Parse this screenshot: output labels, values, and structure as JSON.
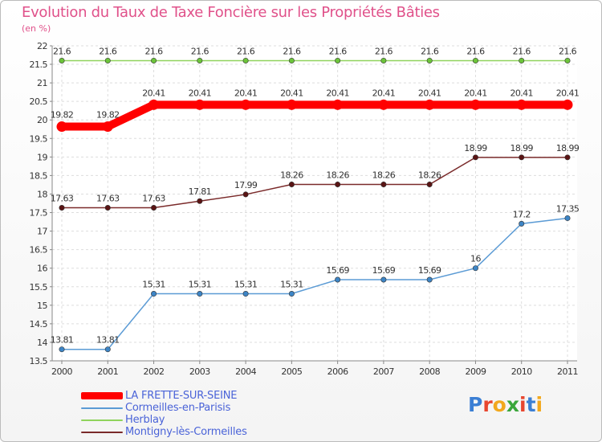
{
  "chart_data": {
    "type": "line",
    "title": "Evolution du Taux de Taxe Foncière sur les Propriétés Bâties",
    "unit_label": "(en %)",
    "x": [
      "2000",
      "2001",
      "2002",
      "2003",
      "2004",
      "2005",
      "2006",
      "2007",
      "2008",
      "2009",
      "2010",
      "2011"
    ],
    "ylim": [
      13.5,
      22
    ],
    "yticks": [
      "13.5",
      "14",
      "14.5",
      "15",
      "15.5",
      "16",
      "16.5",
      "17",
      "17.5",
      "18",
      "18.5",
      "19",
      "19.5",
      "20",
      "20.5",
      "21",
      "21.5",
      "22"
    ],
    "grid": true,
    "series": [
      {
        "name": "LA FRETTE-SUR-SEINE",
        "color": "#ff0000",
        "bold": true,
        "values": [
          19.82,
          19.82,
          20.41,
          20.41,
          20.41,
          20.41,
          20.41,
          20.41,
          20.41,
          20.41,
          20.41,
          20.41
        ],
        "labels": [
          "19.82",
          "19.82",
          "20.41",
          "20.41",
          "20.41",
          "20.41",
          "20.41",
          "20.41",
          "20.41",
          "20.41",
          "20.41",
          "20.41"
        ]
      },
      {
        "name": "Cormeilles-en-Parisis",
        "color": "#5b9bd5",
        "marker": "#3d85c6",
        "values": [
          13.81,
          13.81,
          15.31,
          15.31,
          15.31,
          15.31,
          15.69,
          15.69,
          15.69,
          16,
          17.2,
          17.35
        ],
        "labels": [
          "13.81",
          "13.81",
          "15.31",
          "15.31",
          "15.31",
          "15.31",
          "15.69",
          "15.69",
          "15.69",
          "16",
          "17.2",
          "17.35"
        ]
      },
      {
        "name": "Herblay",
        "color": "#8fd35c",
        "marker": "#6cc43a",
        "values": [
          21.6,
          21.6,
          21.6,
          21.6,
          21.6,
          21.6,
          21.6,
          21.6,
          21.6,
          21.6,
          21.6,
          21.6
        ],
        "labels": [
          "21.6",
          "21.6",
          "21.6",
          "21.6",
          "21.6",
          "21.6",
          "21.6",
          "21.6",
          "21.6",
          "21.6",
          "21.6",
          "21.6"
        ]
      },
      {
        "name": "Montigny-lès-Cormeilles",
        "color": "#7a2a2a",
        "marker": "#5a1414",
        "values": [
          17.63,
          17.63,
          17.63,
          17.81,
          17.99,
          18.26,
          18.26,
          18.26,
          18.26,
          18.99,
          18.99,
          18.99
        ],
        "labels": [
          "17.63",
          "17.63",
          "17.63",
          "17.81",
          "17.99",
          "18.26",
          "18.26",
          "18.26",
          "18.26",
          "18.99",
          "18.99",
          "18.99"
        ]
      }
    ]
  },
  "logo": {
    "text": "Proxiti",
    "letter_colors": [
      "#3b7fd4",
      "#e8462f",
      "#f2a81d",
      "#3aa63a",
      "#e8462f",
      "#3b7fd4",
      "#f2a81d"
    ]
  }
}
